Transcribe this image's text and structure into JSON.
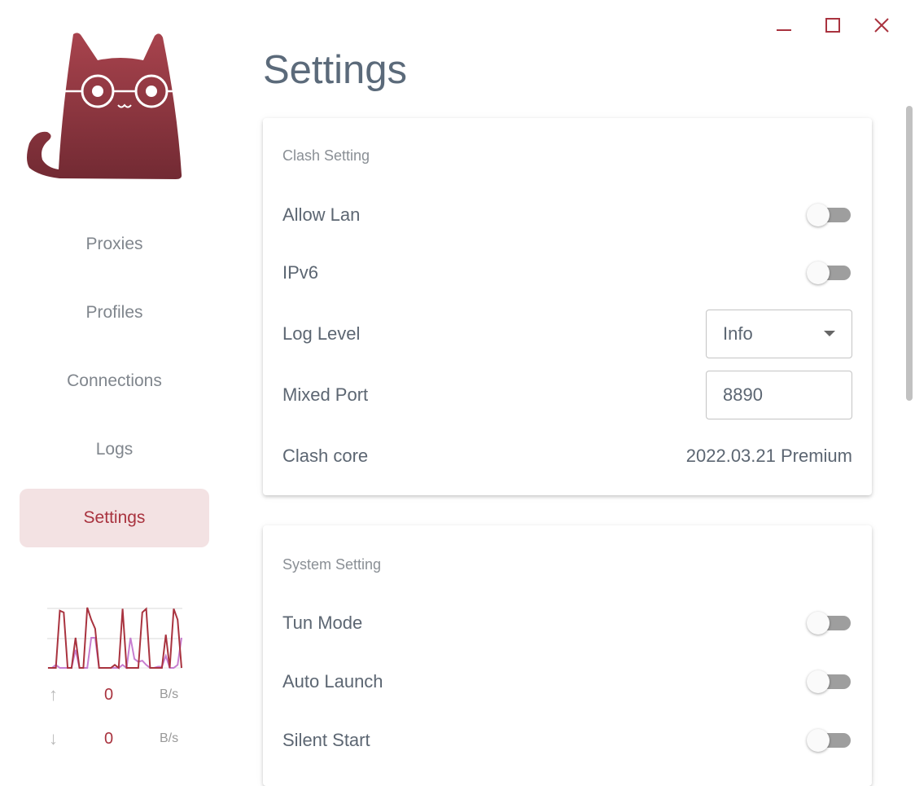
{
  "window": {
    "minimize_icon": "minimize-icon",
    "maximize_icon": "maximize-icon",
    "close_icon": "close-icon",
    "accent": "#a9333f"
  },
  "sidebar": {
    "logo": "cat-logo",
    "items": [
      {
        "label": "Proxies",
        "active": false
      },
      {
        "label": "Profiles",
        "active": false
      },
      {
        "label": "Connections",
        "active": false
      },
      {
        "label": "Logs",
        "active": false
      },
      {
        "label": "Settings",
        "active": true
      }
    ],
    "traffic": {
      "upload": {
        "value": "0",
        "unit": "B/s",
        "icon": "arrow-up-icon"
      },
      "download": {
        "value": "0",
        "unit": "B/s",
        "icon": "arrow-down-icon"
      }
    }
  },
  "chart_data": {
    "type": "line",
    "grid": true,
    "series": [
      {
        "color": "#a9333f",
        "values": [
          0,
          0,
          0,
          95,
          92,
          0,
          0,
          50,
          0,
          0,
          100,
          80,
          65,
          0,
          0,
          0,
          0,
          5,
          0,
          98,
          0,
          0,
          0,
          0,
          92,
          98,
          0,
          0,
          0,
          0,
          55,
          0,
          98,
          80,
          0
        ]
      },
      {
        "color": "#c77ed0",
        "values": [
          0,
          0,
          5,
          0,
          0,
          0,
          0,
          30,
          0,
          0,
          0,
          50,
          50,
          0,
          0,
          0,
          0,
          0,
          0,
          5,
          0,
          50,
          15,
          10,
          12,
          5,
          0,
          0,
          2,
          2,
          20,
          0,
          0,
          5,
          50
        ]
      }
    ]
  },
  "main": {
    "title": "Settings",
    "clash": {
      "header": "Clash Setting",
      "allow_lan": {
        "label": "Allow Lan",
        "on": false
      },
      "ipv6": {
        "label": "IPv6",
        "on": false
      },
      "log_level": {
        "label": "Log Level",
        "value": "Info"
      },
      "mixed_port": {
        "label": "Mixed Port",
        "value": "8890"
      },
      "core": {
        "label": "Clash core",
        "value": "2022.03.21 Premium"
      }
    },
    "system": {
      "header": "System Setting",
      "tun": {
        "label": "Tun Mode",
        "on": false
      },
      "auto_launch": {
        "label": "Auto Launch",
        "on": false
      },
      "silent_start": {
        "label": "Silent Start",
        "on": false
      }
    }
  }
}
